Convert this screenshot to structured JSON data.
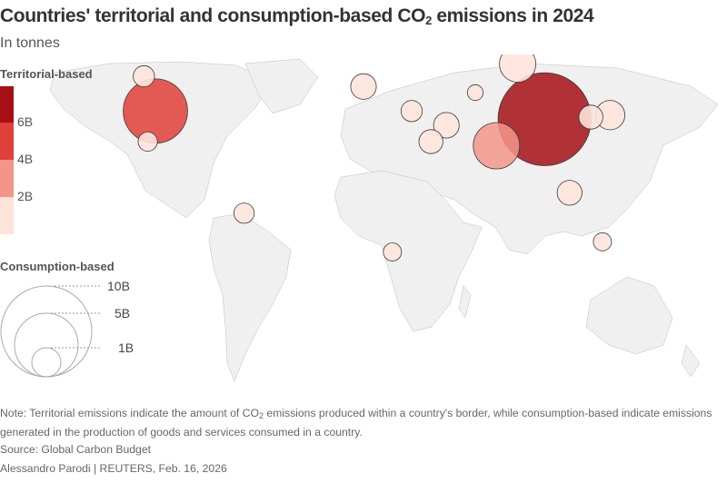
{
  "header": {
    "title_before": "Countries' territorial and consumption-based CO",
    "title_sub": "2",
    "title_after": " emissions in 2024",
    "subtitle": "In tonnes"
  },
  "legend": {
    "territorial": {
      "title": "Territorial-based",
      "bins": [
        {
          "color": "#a50f15"
        },
        {
          "color": "#e0403a",
          "label": "6B"
        },
        {
          "color": "#f3958a",
          "label": "4B"
        },
        {
          "color": "#fde4da",
          "label": "2B"
        }
      ],
      "no_data_color": "#e0e0e0"
    },
    "consumption": {
      "title": "Consumption-based",
      "sizes": [
        {
          "label": "10B",
          "value": 10
        },
        {
          "label": "5B",
          "value": 5
        },
        {
          "label": "1B",
          "value": 1
        }
      ]
    }
  },
  "footer": {
    "note_before": "Note: Territorial emissions indicate the amount of CO",
    "note_sub": "2",
    "note_after": " emissions produced within a country's border, while consumption-based indicate emissions generated in the production of goods and services consumed in a country.",
    "source": "Source: Global Carbon Budget",
    "byline": "Alessandro Parodi | REUTERS, Feb. 16, 2026"
  },
  "chart_data": {
    "type": "proportional-symbol-map",
    "title": "Countries' territorial and consumption-based CO2 emissions in 2024",
    "subtitle": "In tonnes",
    "color_encoding": "territorial emissions (billion tonnes), bins <2B, 2-4B, 4-6B, >6B",
    "size_encoding": "consumption-based emissions (billion tonnes)",
    "colors": {
      "gt6": "#a50f15",
      "4to6": "#e0403a",
      "2to4": "#f3958a",
      "lt2": "#fde4da",
      "no_data": "#e0e0e0"
    },
    "points": [
      {
        "region": "China",
        "lon": 104,
        "lat": 35,
        "territorial_bin": "gt6",
        "consumption": 10.5
      },
      {
        "region": "United States",
        "lon": -98,
        "lat": 39,
        "territorial_bin": "4to6",
        "consumption": 5.0
      },
      {
        "region": "India",
        "lon": 79,
        "lat": 22,
        "territorial_bin": "2to4",
        "consumption": 2.6
      },
      {
        "region": "Russia",
        "lon": 90,
        "lat": 62,
        "territorial_bin": "lt2",
        "consumption": 1.6
      },
      {
        "region": "Japan",
        "lon": 138,
        "lat": 37,
        "territorial_bin": "lt2",
        "consumption": 1.05
      },
      {
        "region": "Iran",
        "lon": 53,
        "lat": 32,
        "territorial_bin": "lt2",
        "consumption": 0.8
      },
      {
        "region": "Korea",
        "lon": 128,
        "lat": 36,
        "territorial_bin": "lt2",
        "consumption": 0.7
      },
      {
        "region": "Germany",
        "lon": 10,
        "lat": 51,
        "territorial_bin": "lt2",
        "consumption": 0.8
      },
      {
        "region": "Saudi Arabia",
        "lon": 45,
        "lat": 24,
        "territorial_bin": "lt2",
        "consumption": 0.7
      },
      {
        "region": "Indonesia",
        "lon": 117,
        "lat": -1,
        "territorial_bin": "lt2",
        "consumption": 0.75
      },
      {
        "region": "Canada",
        "lon": -104,
        "lat": 56,
        "territorial_bin": "lt2",
        "consumption": 0.55
      },
      {
        "region": "Mexico",
        "lon": -102,
        "lat": 24,
        "territorial_bin": "lt2",
        "consumption": 0.45
      },
      {
        "region": "Brazil",
        "lon": -52,
        "lat": -11,
        "territorial_bin": "lt2",
        "consumption": 0.5
      },
      {
        "region": "Turkey",
        "lon": 35,
        "lat": 39,
        "territorial_bin": "lt2",
        "consumption": 0.55
      },
      {
        "region": "Australia",
        "lon": 134,
        "lat": -25,
        "territorial_bin": "lt2",
        "consumption": 0.4
      },
      {
        "region": "South Africa",
        "lon": 25,
        "lat": -30,
        "territorial_bin": "lt2",
        "consumption": 0.4
      },
      {
        "region": "Kazakhstan",
        "lon": 68,
        "lat": 48,
        "territorial_bin": "lt2",
        "consumption": 0.3
      }
    ]
  }
}
